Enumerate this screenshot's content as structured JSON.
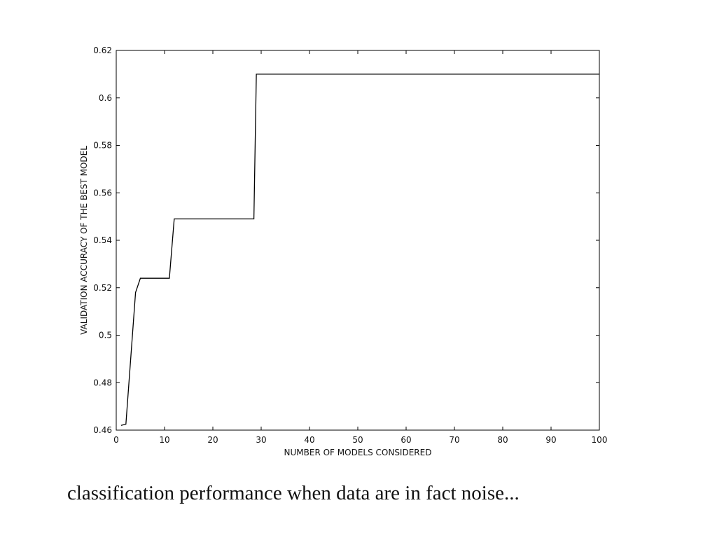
{
  "chart_data": {
    "type": "line",
    "xlabel": "NUMBER OF MODELS CONSIDERED",
    "ylabel": "VALIDATION ACCURACY OF THE BEST MODEL",
    "xlim": [
      0,
      100
    ],
    "ylim": [
      0.46,
      0.62
    ],
    "xticks": [
      0,
      10,
      20,
      30,
      40,
      50,
      60,
      70,
      80,
      90,
      100
    ],
    "xtick_labels": [
      "0",
      "10",
      "20",
      "30",
      "40",
      "50",
      "60",
      "70",
      "80",
      "90",
      "100"
    ],
    "yticks": [
      0.46,
      0.48,
      0.5,
      0.52,
      0.54,
      0.56,
      0.58,
      0.6,
      0.62
    ],
    "ytick_labels": [
      "0.46",
      "0.48",
      "0.5",
      "0.52",
      "0.54",
      "0.56",
      "0.58",
      "0.6",
      "0.62"
    ],
    "grid": false,
    "line_color": "#000000",
    "series": [
      {
        "x": [
          1,
          2,
          4,
          5,
          11,
          12,
          28.5,
          29,
          100
        ],
        "y": [
          0.462,
          0.4625,
          0.518,
          0.524,
          0.524,
          0.549,
          0.549,
          0.61,
          0.61
        ]
      }
    ]
  },
  "caption": "classification performance when data are in fact noise..."
}
